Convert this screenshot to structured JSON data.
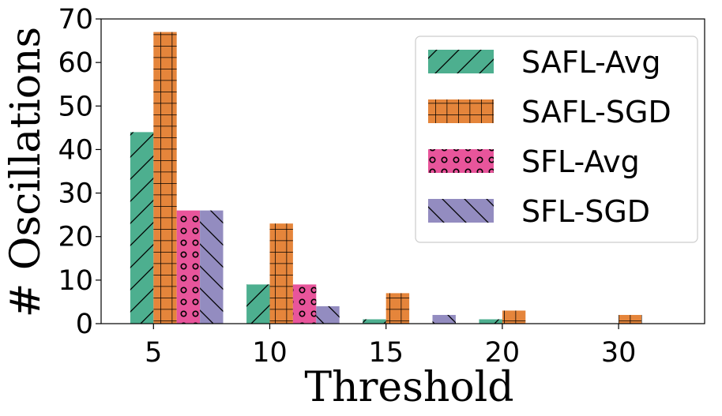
{
  "chart_data": {
    "type": "bar",
    "title": "",
    "xlabel": "Threshold",
    "ylabel": "# Oscillations",
    "categories": [
      "5",
      "10",
      "15",
      "20",
      "30"
    ],
    "ylim": [
      0,
      70
    ],
    "yticks": [
      "0",
      "10",
      "20",
      "30",
      "40",
      "50",
      "60",
      "70"
    ],
    "grid": false,
    "legend_position": "top-right",
    "series": [
      {
        "name": "SAFL-Avg",
        "color": "#4daf8f",
        "pattern": "diagonal-forward",
        "values": [
          44,
          9,
          1,
          1,
          0
        ]
      },
      {
        "name": "SAFL-SGD",
        "color": "#e5853b",
        "pattern": "grid",
        "values": [
          67,
          23,
          7,
          3,
          2
        ]
      },
      {
        "name": "SFL-Avg",
        "color": "#e8559b",
        "pattern": "circles",
        "values": [
          26,
          9,
          0,
          0,
          0
        ]
      },
      {
        "name": "SFL-SGD",
        "color": "#938cc0",
        "pattern": "diagonal-back",
        "values": [
          26,
          4,
          2,
          0,
          0
        ]
      }
    ]
  }
}
